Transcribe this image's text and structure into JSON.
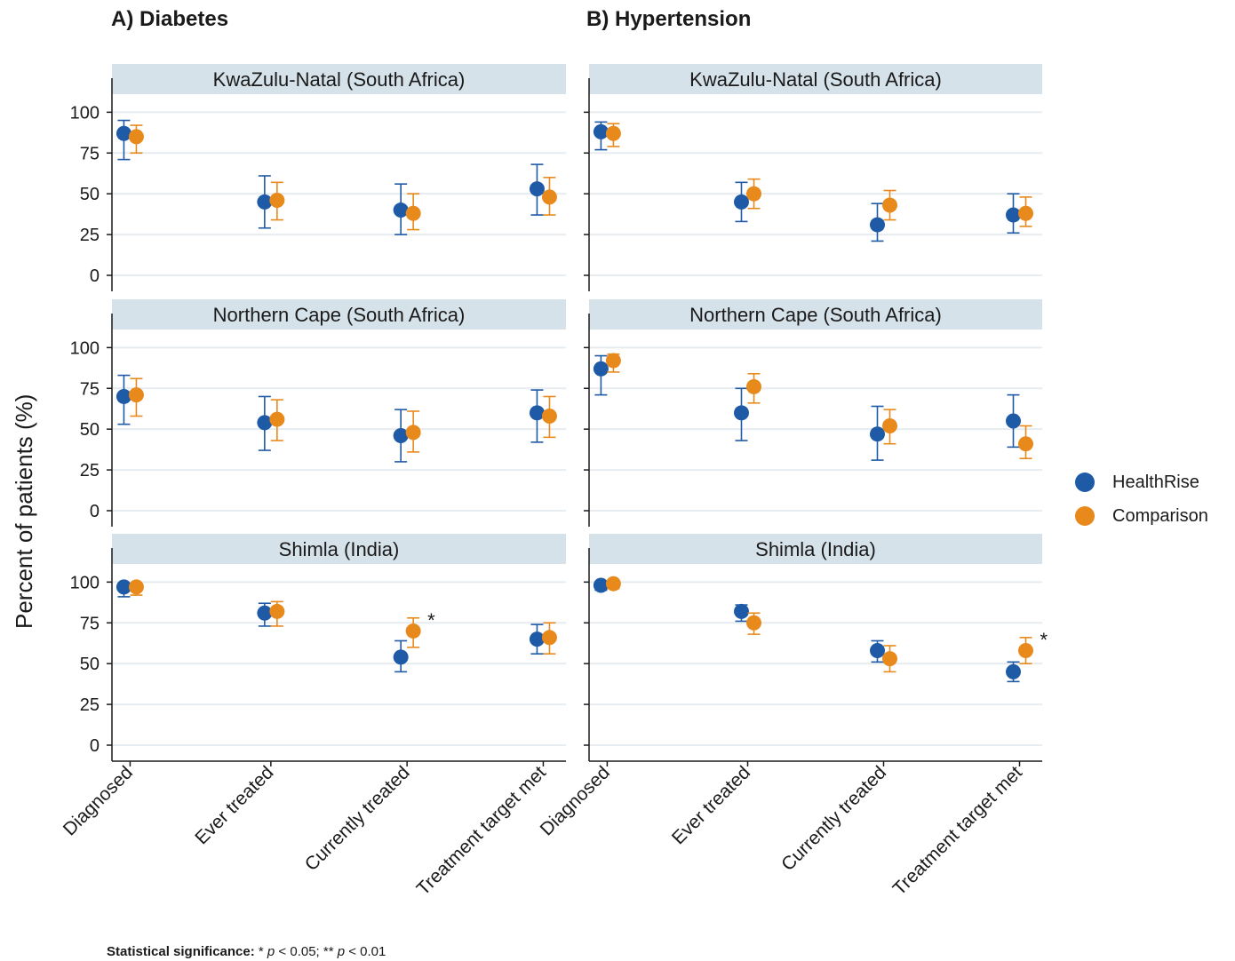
{
  "columns": [
    {
      "title": "A) Diabetes"
    },
    {
      "title": "B) Hypertension"
    }
  ],
  "y_axis_title": "Percent of patients (%)",
  "legend": [
    {
      "label": "HealthRise",
      "color": "#1f5aa6"
    },
    {
      "label": "Comparison",
      "color": "#e8891c"
    }
  ],
  "footnote": {
    "label": "Statistical significance:",
    "text_1": " * ",
    "p1": "p",
    "text_2": " < 0.05; ** ",
    "p2": "p",
    "text_3": " <  0.01"
  },
  "chart_data": [
    {
      "type": "scatter",
      "column": 0,
      "title": "KwaZulu-Natal (South Africa)",
      "categories": [
        "Diagnosed",
        "Ever treated",
        "Currently treated",
        "Treatment target met"
      ],
      "ylim": [
        0,
        110
      ],
      "yticks": [
        0,
        25,
        50,
        75,
        100
      ],
      "grid": true,
      "show_x_labels": false,
      "series": [
        {
          "name": "HealthRise",
          "values": [
            87,
            45,
            40,
            53
          ],
          "ci_low": [
            71,
            29,
            25,
            37
          ],
          "ci_high": [
            95,
            61,
            56,
            68
          ]
        },
        {
          "name": "Comparison",
          "values": [
            85,
            46,
            38,
            48
          ],
          "ci_low": [
            75,
            34,
            28,
            37
          ],
          "ci_high": [
            92,
            57,
            50,
            60
          ]
        }
      ],
      "significance": [
        "",
        "",
        "",
        ""
      ]
    },
    {
      "type": "scatter",
      "column": 0,
      "title": "Northern Cape (South Africa)",
      "categories": [
        "Diagnosed",
        "Ever treated",
        "Currently treated",
        "Treatment target met"
      ],
      "ylim": [
        0,
        110
      ],
      "yticks": [
        0,
        25,
        50,
        75,
        100
      ],
      "grid": true,
      "show_x_labels": false,
      "series": [
        {
          "name": "HealthRise",
          "values": [
            70,
            54,
            46,
            60
          ],
          "ci_low": [
            53,
            37,
            30,
            42
          ],
          "ci_high": [
            83,
            70,
            62,
            74
          ]
        },
        {
          "name": "Comparison",
          "values": [
            71,
            56,
            48,
            58
          ],
          "ci_low": [
            58,
            43,
            36,
            45
          ],
          "ci_high": [
            81,
            68,
            61,
            70
          ]
        }
      ],
      "significance": [
        "",
        "",
        "",
        ""
      ]
    },
    {
      "type": "scatter",
      "column": 0,
      "title": "Shimla (India)",
      "categories": [
        "Diagnosed",
        "Ever treated",
        "Currently treated",
        "Treatment target met"
      ],
      "ylim": [
        0,
        110
      ],
      "yticks": [
        0,
        25,
        50,
        75,
        100
      ],
      "grid": true,
      "show_x_labels": true,
      "series": [
        {
          "name": "HealthRise",
          "values": [
            97,
            81,
            54,
            65
          ],
          "ci_low": [
            91,
            73,
            45,
            56
          ],
          "ci_high": [
            99,
            87,
            64,
            74
          ]
        },
        {
          "name": "Comparison",
          "values": [
            97,
            82,
            70,
            66
          ],
          "ci_low": [
            92,
            73,
            60,
            56
          ],
          "ci_high": [
            99,
            88,
            78,
            75
          ]
        }
      ],
      "significance": [
        "",
        "",
        "*",
        ""
      ]
    },
    {
      "type": "scatter",
      "column": 1,
      "title": "KwaZulu-Natal (South Africa)",
      "categories": [
        "Diagnosed",
        "Ever treated",
        "Currently treated",
        "Treatment target met"
      ],
      "ylim": [
        0,
        110
      ],
      "yticks": [
        0,
        25,
        50,
        75,
        100
      ],
      "grid": true,
      "show_x_labels": false,
      "series": [
        {
          "name": "HealthRise",
          "values": [
            88,
            45,
            31,
            37
          ],
          "ci_low": [
            77,
            33,
            21,
            26
          ],
          "ci_high": [
            94,
            57,
            44,
            50
          ]
        },
        {
          "name": "Comparison",
          "values": [
            87,
            50,
            43,
            38
          ],
          "ci_low": [
            79,
            41,
            34,
            30
          ],
          "ci_high": [
            93,
            59,
            52,
            48
          ]
        }
      ],
      "significance": [
        "",
        "",
        "",
        ""
      ]
    },
    {
      "type": "scatter",
      "column": 1,
      "title": "Northern Cape (South Africa)",
      "categories": [
        "Diagnosed",
        "Ever treated",
        "Currently treated",
        "Treatment target met"
      ],
      "ylim": [
        0,
        110
      ],
      "yticks": [
        0,
        25,
        50,
        75,
        100
      ],
      "grid": true,
      "show_x_labels": false,
      "series": [
        {
          "name": "HealthRise",
          "values": [
            87,
            60,
            47,
            55
          ],
          "ci_low": [
            71,
            43,
            31,
            39
          ],
          "ci_high": [
            95,
            75,
            64,
            71
          ]
        },
        {
          "name": "Comparison",
          "values": [
            92,
            76,
            52,
            41
          ],
          "ci_low": [
            85,
            66,
            41,
            32
          ],
          "ci_high": [
            96,
            84,
            62,
            52
          ]
        }
      ],
      "significance": [
        "",
        "",
        "",
        ""
      ]
    },
    {
      "type": "scatter",
      "column": 1,
      "title": "Shimla (India)",
      "categories": [
        "Diagnosed",
        "Ever treated",
        "Currently treated",
        "Treatment target met"
      ],
      "ylim": [
        0,
        110
      ],
      "yticks": [
        0,
        25,
        50,
        75,
        100
      ],
      "grid": true,
      "show_x_labels": true,
      "series": [
        {
          "name": "HealthRise",
          "values": [
            98,
            82,
            58,
            45
          ],
          "ci_low": [
            95,
            76,
            51,
            39
          ],
          "ci_high": [
            99,
            86,
            64,
            51
          ]
        },
        {
          "name": "Comparison",
          "values": [
            99,
            75,
            53,
            58
          ],
          "ci_low": [
            96,
            68,
            45,
            50
          ],
          "ci_high": [
            100,
            81,
            61,
            66
          ]
        }
      ],
      "significance": [
        "",
        "",
        "",
        "*"
      ]
    }
  ]
}
